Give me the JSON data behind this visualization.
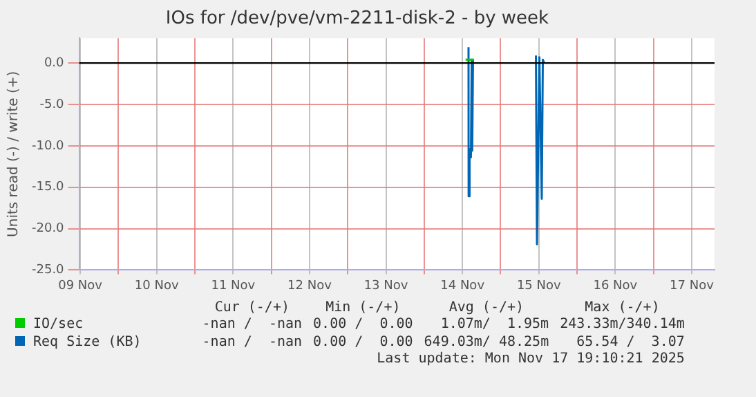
{
  "chart_data": {
    "type": "line",
    "title": "IOs for /dev/pve/vm-2211-disk-2 - by week",
    "ylabel": "Units read (-) / write (+)",
    "series": [
      {
        "name": "IO/sec",
        "color": "#00cc00",
        "x": [
          "2025-11-14T13:00",
          "2025-11-14T15:40"
        ],
        "values": [
          0.4,
          0.4
        ]
      },
      {
        "name": "Req Size (KB)",
        "color": "#0066b3",
        "x": [
          "2025-11-14T13:55",
          "2025-11-14T13:57",
          "2025-11-14T14:15",
          "2025-11-14T14:35",
          "2025-11-14T14:40",
          "2025-11-14T14:55",
          "2025-11-14T15:05",
          "2025-11-14T15:20",
          "2025-11-15T00:00",
          "2025-11-15T11:05",
          "2025-11-15T11:25",
          "2025-11-15T12:10",
          "2025-11-15T12:55",
          "2025-11-15T13:15",
          "2025-11-15T13:40"
        ],
        "values": [
          1.9,
          -16.1,
          -10.4,
          -10.4,
          -11.4,
          0.4,
          -10.6,
          0.4,
          null,
          0.9,
          -21.9,
          0.7,
          -16.4,
          0.4,
          0
        ]
      }
    ],
    "xlim": [
      "2025-11-09T11:40",
      "2025-11-17T19:10"
    ],
    "xticks": [
      {
        "value": "2025-11-09T12:00",
        "label": "09 Nov"
      },
      {
        "value": "2025-11-10T00:00",
        "label": null
      },
      {
        "value": "2025-11-10T12:00",
        "label": "10 Nov"
      },
      {
        "value": "2025-11-11T00:00",
        "label": null
      },
      {
        "value": "2025-11-11T12:00",
        "label": "11 Nov"
      },
      {
        "value": "2025-11-12T00:00",
        "label": null
      },
      {
        "value": "2025-11-12T12:00",
        "label": "12 Nov"
      },
      {
        "value": "2025-11-13T00:00",
        "label": null
      },
      {
        "value": "2025-11-13T12:00",
        "label": "13 Nov"
      },
      {
        "value": "2025-11-14T00:00",
        "label": null
      },
      {
        "value": "2025-11-14T12:00",
        "label": "14 Nov"
      },
      {
        "value": "2025-11-15T00:00",
        "label": null
      },
      {
        "value": "2025-11-15T12:00",
        "label": "15 Nov"
      },
      {
        "value": "2025-11-16T00:00",
        "label": null
      },
      {
        "value": "2025-11-16T12:00",
        "label": "16 Nov"
      },
      {
        "value": "2025-11-17T00:00",
        "label": null
      },
      {
        "value": "2025-11-17T12:00",
        "label": "17 Nov"
      }
    ],
    "ylim": [
      -25,
      3
    ],
    "yticks": [
      {
        "value": -25,
        "label": "-25.0"
      },
      {
        "value": -20,
        "label": "-20.0"
      },
      {
        "value": -15,
        "label": "-15.0"
      },
      {
        "value": -10,
        "label": "-10.0"
      },
      {
        "value": -5,
        "label": "-5.0"
      },
      {
        "value": 0,
        "label": "0.0"
      }
    ],
    "ref_lines": [
      {
        "axis": "y",
        "value": 0,
        "color": "#000000"
      }
    ],
    "grid": true,
    "legend": "bottom",
    "marker": "none",
    "line_style": "solid",
    "annotations": [
      "Cur (-/+)",
      "Min (-/+)",
      "Avg (-/+)",
      "Max (-/+)",
      "-nan /  -nan",
      "0.00 /  0.00",
      "1.07m/  1.95m",
      "243.33m/340.14m",
      "-nan /  -nan",
      "0.00 /  0.00",
      "649.03m/ 48.25m",
      "65.54 /  3.07",
      "Last update: Mon Nov 17 19:10:21 2025"
    ]
  }
}
